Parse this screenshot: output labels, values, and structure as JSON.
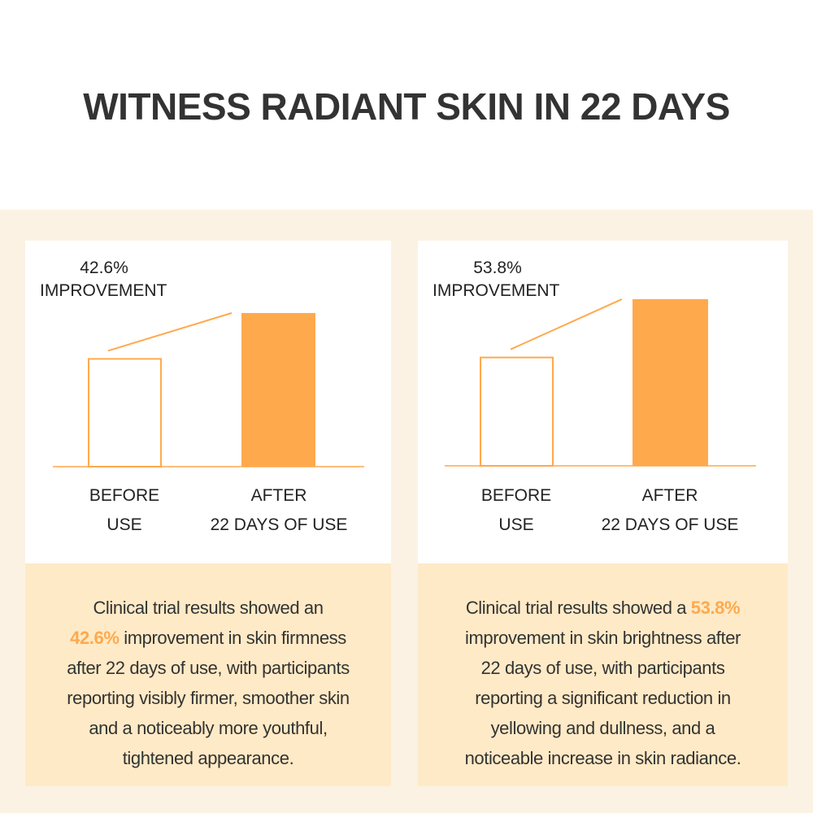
{
  "title": "WITNESS RADIANT SKIN IN 22 DAYS",
  "colors": {
    "accent": "#ffa94d",
    "background": "#fbf2e4",
    "text_panel": "#feeac6",
    "text": "#333333"
  },
  "chart_data": [
    {
      "type": "bar",
      "annotation_value": "42.6%",
      "annotation_label": "IMPROVEMENT",
      "categories": [
        [
          "BEFORE",
          "USE"
        ],
        [
          "AFTER",
          "22 DAYS OF USE"
        ]
      ],
      "values": [
        100,
        142.6
      ],
      "styles": [
        "outline",
        "filled"
      ],
      "description": {
        "lines": [
          [
            {
              "t": "Clinical trial results showed an"
            }
          ],
          [
            {
              "t": "42.6%",
              "hl": true
            },
            {
              "t": " improvement in skin firmness"
            }
          ],
          [
            {
              "t": "after 22 days of use, with participants"
            }
          ],
          [
            {
              "t": "reporting visibly firmer, smoother skin"
            }
          ],
          [
            {
              "t": "and a noticeably more youthful,"
            }
          ],
          [
            {
              "t": "tightened appearance."
            }
          ]
        ]
      }
    },
    {
      "type": "bar",
      "annotation_value": "53.8%",
      "annotation_label": "IMPROVEMENT",
      "categories": [
        [
          "BEFORE",
          "USE"
        ],
        [
          "AFTER",
          "22 DAYS OF USE"
        ]
      ],
      "values": [
        100,
        153.8
      ],
      "styles": [
        "outline",
        "filled"
      ],
      "description": {
        "lines": [
          [
            {
              "t": "Clinical trial results showed a "
            },
            {
              "t": "53.8%",
              "hl": true
            }
          ],
          [
            {
              "t": "improvement in skin brightness after"
            }
          ],
          [
            {
              "t": "22 days of use, with participants"
            }
          ],
          [
            {
              "t": "reporting a significant reduction in"
            }
          ],
          [
            {
              "t": "yellowing and dullness, and a"
            }
          ],
          [
            {
              "t": "noticeable increase in skin radiance."
            }
          ]
        ]
      }
    }
  ]
}
